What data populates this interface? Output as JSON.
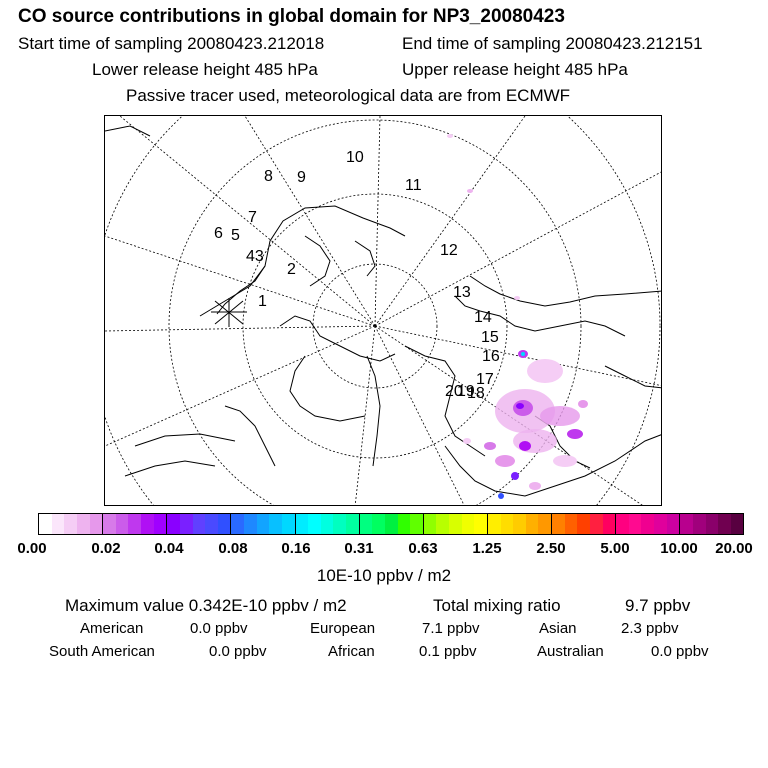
{
  "header": {
    "title": "CO  source contributions in global domain for NP3_20080423",
    "start_label": "Start time of sampling 20080423.212018",
    "end_label": "End time of sampling 20080423.212151",
    "lower_label": "Lower release height  485 hPa",
    "upper_label": "Upper release height  485 hPa",
    "note": "Passive tracer used, meteorological data are from ECMWF"
  },
  "map": {
    "day_labels": [
      "1",
      "2",
      "43",
      "5",
      "6",
      "7",
      "8",
      "9",
      "10",
      "11",
      "12",
      "13",
      "14",
      "15",
      "16",
      "17",
      "18",
      "19",
      "20"
    ],
    "release_marker": "release-site-cross"
  },
  "colorbar": {
    "ticks": [
      "0.00",
      "0.02",
      "0.04",
      "0.08",
      "0.16",
      "0.31",
      "0.63",
      "1.25",
      "2.50",
      "5.00",
      "10.00",
      "20.00"
    ],
    "swatches": [
      "#ffffff",
      "#fbe6fb",
      "#f5cdf5",
      "#eeb3ef",
      "#e698eb",
      "#d77ae9",
      "#cb5cea",
      "#bf38ee",
      "#b010f4",
      "#a000ff",
      "#8a00ff",
      "#7a20ff",
      "#6040ff",
      "#4a4aff",
      "#3050ff",
      "#2a6aff",
      "#1e88ff",
      "#12a4ff",
      "#08c0ff",
      "#00d8ff",
      "#00ecff",
      "#00ffff",
      "#00ffe0",
      "#00ffc0",
      "#00ffa0",
      "#00ff80",
      "#00ff60",
      "#00f040",
      "#30ff00",
      "#60ff00",
      "#90ff00",
      "#b8ff00",
      "#d8ff00",
      "#f0ff00",
      "#ffff00",
      "#ffee00",
      "#ffdd00",
      "#ffcc00",
      "#ffb000",
      "#ff9800",
      "#ff8000",
      "#ff6000",
      "#ff4000",
      "#ff2040",
      "#ff0060",
      "#ff0080",
      "#ff0a90",
      "#f00090",
      "#e0009c",
      "#cc00a0",
      "#b8008e",
      "#a0007c",
      "#8a006a",
      "#700050",
      "#580040"
    ],
    "unit": "10E-10 ppbv / m2"
  },
  "summary": {
    "max_label": "Maximum value  0.342E-10 ppbv / m2",
    "total_label": "Total mixing ratio",
    "total_value": "9.7 ppbv",
    "american_label": "American",
    "american_value": "0.0 ppbv",
    "european_label": "European",
    "european_value": "7.1 ppbv",
    "asian_label": "Asian",
    "asian_value": "2.3 ppbv",
    "south_american_label": "South American",
    "south_american_value": "0.0 ppbv",
    "african_label": "African",
    "african_value": "0.1 ppbv",
    "australian_label": "Australian",
    "australian_value": "0.0 ppbv"
  }
}
